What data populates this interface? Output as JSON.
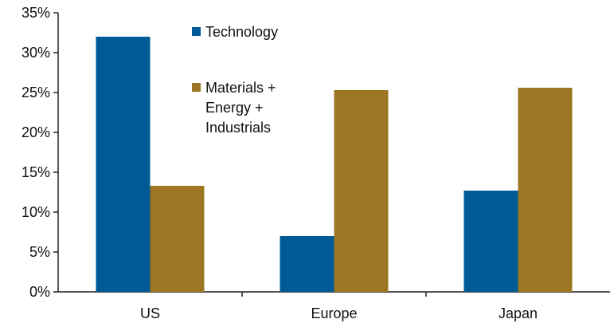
{
  "chart_data": {
    "type": "bar",
    "title": "",
    "xlabel": "",
    "ylabel": "",
    "categories": [
      "US",
      "Europe",
      "Japan"
    ],
    "series": [
      {
        "name": "Technology",
        "values": [
          32.0,
          7.0,
          12.7
        ],
        "color": "#005a96"
      },
      {
        "name_lines": [
          "Materials +",
          "Energy +",
          "Industrials"
        ],
        "values": [
          13.3,
          25.3,
          25.6
        ],
        "color": "#9c7622"
      }
    ],
    "ylim": [
      0,
      35
    ],
    "yticks": [
      {
        "value": 0,
        "label": "0%"
      },
      {
        "value": 5,
        "label": "5%"
      },
      {
        "value": 10,
        "label": "10%"
      },
      {
        "value": 15,
        "label": "15%"
      },
      {
        "value": 20,
        "label": "20%"
      },
      {
        "value": 25,
        "label": "25%"
      },
      {
        "value": 30,
        "label": "30%"
      },
      {
        "value": 35,
        "label": "35%"
      }
    ],
    "grid": false,
    "legend_position": "top-center"
  }
}
